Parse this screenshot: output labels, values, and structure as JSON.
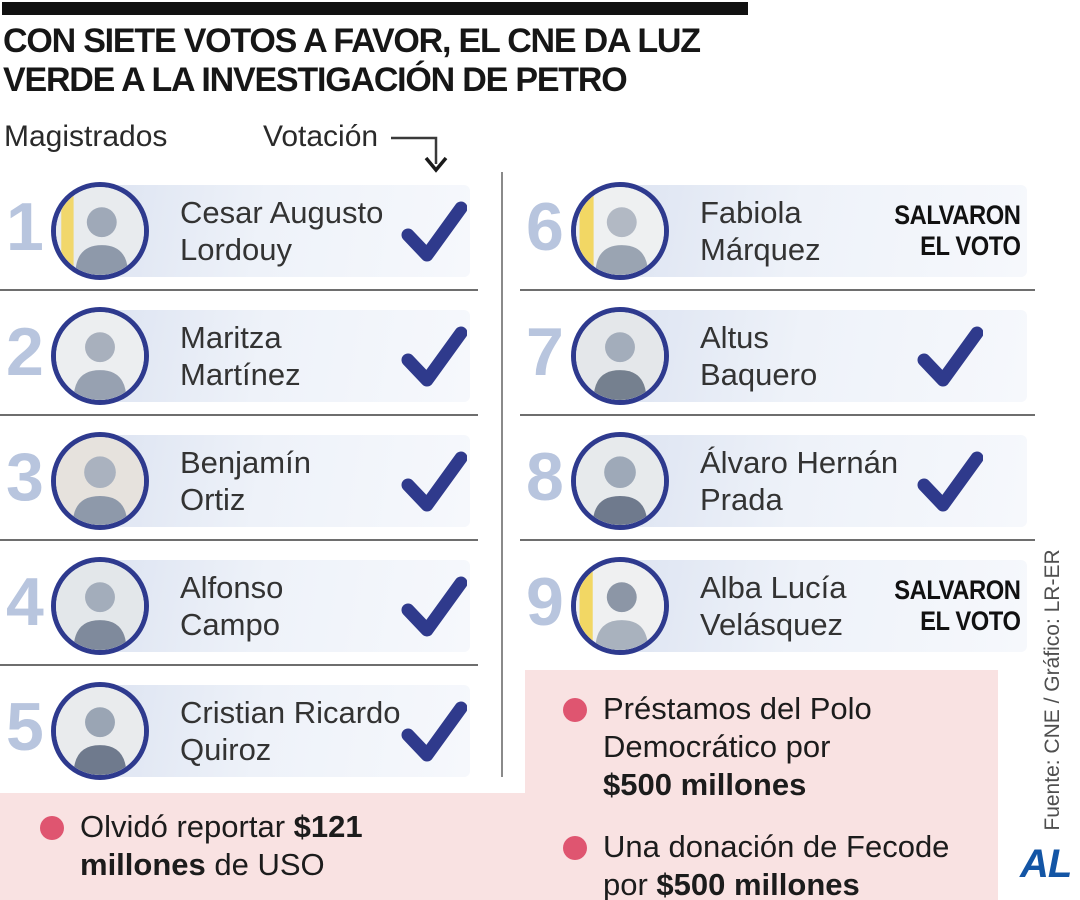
{
  "title": {
    "line1": "CON SIETE VOTOS A FAVOR, EL CNE DA LUZ",
    "line2": "VERDE A LA INVESTIGACIÓN DE PETRO"
  },
  "column_headers": {
    "left": "Magistrados",
    "right": "Votación"
  },
  "salvaron_label": {
    "line1": "SALVARON",
    "line2": "EL VOTO"
  },
  "magistrates": [
    {
      "num": "1",
      "name_line1": "Cesar Augusto",
      "name_line2": "Lordouy",
      "vote": "check"
    },
    {
      "num": "2",
      "name_line1": "Maritza",
      "name_line2": "Martínez",
      "vote": "check"
    },
    {
      "num": "3",
      "name_line1": "Benjamín",
      "name_line2": "Ortiz",
      "vote": "check"
    },
    {
      "num": "4",
      "name_line1": "Alfonso",
      "name_line2": "Campo",
      "vote": "check"
    },
    {
      "num": "5",
      "name_line1": "Cristian Ricardo",
      "name_line2": "Quiroz",
      "vote": "check"
    },
    {
      "num": "6",
      "name_line1": "Fabiola",
      "name_line2": "Márquez",
      "vote": "salvaron"
    },
    {
      "num": "7",
      "name_line1": "Altus",
      "name_line2": "Baquero",
      "vote": "check"
    },
    {
      "num": "8",
      "name_line1": "Álvaro Hernán",
      "name_line2": "Prada",
      "vote": "check"
    },
    {
      "num": "9",
      "name_line1": "Alba Lucía",
      "name_line2": "Velásquez",
      "vote": "salvaron"
    }
  ],
  "notes": {
    "left_item": {
      "lines": [
        [
          {
            "t": "Olvidó reportar ",
            "b": false
          },
          {
            "t": "$121",
            "b": true
          }
        ],
        [
          {
            "t": "millones",
            "b": true
          },
          {
            "t": " de USO",
            "b": false
          }
        ]
      ]
    },
    "right_item1": {
      "lines": [
        [
          {
            "t": "Préstamos del Polo",
            "b": false
          }
        ],
        [
          {
            "t": "Democrático por",
            "b": false
          }
        ],
        [
          {
            "t": "$500 millones",
            "b": true
          }
        ]
      ]
    },
    "right_item2": {
      "lines": [
        [
          {
            "t": "Una donación de Fecode",
            "b": false
          }
        ],
        [
          {
            "t": "por ",
            "b": false
          },
          {
            "t": "$500 millones",
            "b": true
          }
        ]
      ]
    }
  },
  "source": "Fuente: CNE / Gráfico: LR-ER",
  "logo": "AL",
  "colors": {
    "check": "#2f3a8c",
    "ring": "#2e3a8e",
    "number": "#b8c5de",
    "bar-from": "#dce3f1",
    "bar-to": "#f6f8fc",
    "pink": "#f9e2e2",
    "bullet": "#df5570",
    "al": "#1355a5",
    "divider": "#6e6e6e",
    "vdivider": "#8a8a8a",
    "title-text": "#161616",
    "name-text": "#333333",
    "source-text": "#4f4f4f"
  }
}
